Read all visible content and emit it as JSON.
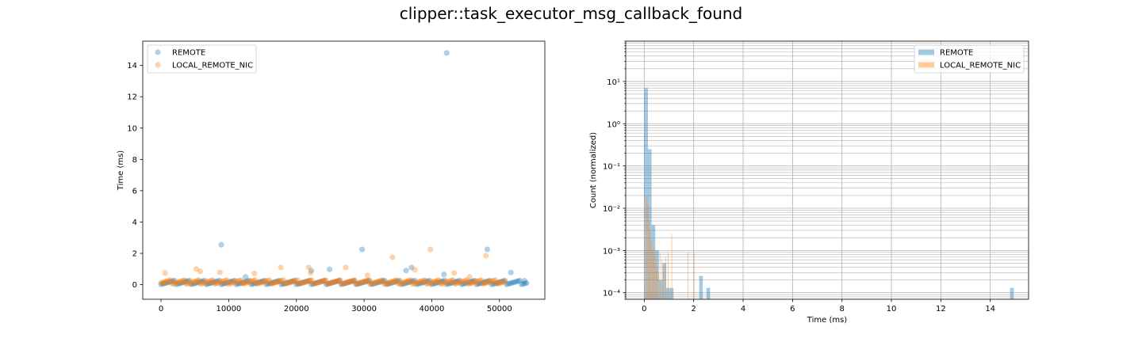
{
  "figure": {
    "title": "clipper::task_executor_msg_callback_found",
    "colors": {
      "REMOTE": "#1f77b4",
      "LOCAL_REMOTE_NIC": "#ff7f0e"
    }
  },
  "chart_data": [
    {
      "type": "scatter",
      "title": "",
      "xlabel": "",
      "ylabel": "Time (ms)",
      "xlim": [
        -2700,
        56700
      ],
      "ylim": [
        -0.93,
        15.55
      ],
      "xticks": [
        "0",
        "10000",
        "20000",
        "30000",
        "40000",
        "50000"
      ],
      "yticks": [
        "0",
        "2",
        "4",
        "6",
        "8",
        "10",
        "12",
        "14"
      ],
      "legend": {
        "placement": "upper-left",
        "entries": [
          "REMOTE",
          "LOCAL_REMOTE_NIC"
        ]
      },
      "series": [
        {
          "name": "REMOTE",
          "color": "#1f77b4",
          "x_range": [
            0,
            54000
          ],
          "baseline": 0.02,
          "outliers": [
            [
              8900,
              2.55
            ],
            [
              29700,
              2.25
            ],
            [
              42200,
              14.8
            ],
            [
              48200,
              2.25
            ],
            [
              51700,
              0.78
            ],
            [
              41800,
              0.65
            ],
            [
              37000,
              1.1
            ],
            [
              36200,
              0.9
            ],
            [
              22200,
              0.9
            ],
            [
              24900,
              0.98
            ],
            [
              53700,
              0.25
            ],
            [
              12500,
              0.5
            ]
          ]
        },
        {
          "name": "LOCAL_REMOTE_NIC",
          "color": "#ff7f0e",
          "x_range": [
            0,
            50800
          ],
          "baseline": 0.05,
          "outliers": [
            [
              600,
              0.75
            ],
            [
              5200,
              1.0
            ],
            [
              5800,
              0.85
            ],
            [
              8700,
              0.78
            ],
            [
              13800,
              0.72
            ],
            [
              17700,
              1.1
            ],
            [
              21800,
              1.1
            ],
            [
              22100,
              0.75
            ],
            [
              27300,
              1.1
            ],
            [
              34200,
              1.75
            ],
            [
              37500,
              0.95
            ],
            [
              39800,
              2.25
            ],
            [
              43300,
              0.75
            ],
            [
              48000,
              1.85
            ],
            [
              30500,
              0.6
            ],
            [
              45600,
              0.5
            ]
          ]
        }
      ]
    },
    {
      "type": "bar",
      "title": "",
      "xlabel": "Time (ms)",
      "ylabel": "Count (normalized)",
      "xlim": [
        -0.75,
        15.55
      ],
      "ylim": [
        7e-05,
        90
      ],
      "yscale": "log",
      "grid": true,
      "xticks": [
        "0",
        "2",
        "4",
        "6",
        "8",
        "10",
        "12",
        "14"
      ],
      "yticks": [
        "10⁻⁴",
        "10⁻³",
        "10⁻²",
        "10⁻¹",
        "10⁰",
        "10¹"
      ],
      "legend": {
        "placement": "upper-right",
        "entries": [
          "REMOTE",
          "LOCAL_REMOTE_NIC"
        ]
      },
      "series": [
        {
          "name": "REMOTE",
          "color": "#1f77b4",
          "bin_width": 0.148,
          "bins": [
            [
              0,
              7
            ],
            [
              0.148,
              0.25
            ],
            [
              0.296,
              0.004
            ],
            [
              0.444,
              0.001
            ],
            [
              0.592,
              0.0002
            ],
            [
              0.74,
              0.0005
            ],
            [
              0.888,
              0.00013
            ],
            [
              1.036,
              0.00013
            ],
            [
              2.22,
              0.00025
            ],
            [
              2.516,
              0.00013
            ],
            [
              14.8,
              0.00013
            ]
          ]
        },
        {
          "name": "LOCAL_REMOTE_NIC",
          "color": "#ff7f0e",
          "bin_width": 0.022,
          "bins": [
            [
              0.06,
              0.018
            ],
            [
              0.1,
              0.02
            ],
            [
              0.14,
              0.012
            ],
            [
              0.18,
              0.005
            ],
            [
              0.22,
              0.003
            ],
            [
              0.26,
              0.002
            ],
            [
              0.3,
              0.0015
            ],
            [
              0.34,
              0.001
            ],
            [
              0.38,
              0.0013
            ],
            [
              0.42,
              0.0007
            ],
            [
              0.46,
              0.0005
            ],
            [
              0.5,
              0.0004
            ],
            [
              0.56,
              0.0003
            ],
            [
              0.62,
              0.0009
            ],
            [
              0.7,
              0.0006
            ],
            [
              0.76,
              0.0003
            ],
            [
              0.85,
              0.0007
            ],
            [
              0.95,
              0.0009
            ],
            [
              1.1,
              0.0025
            ],
            [
              1.75,
              0.0009
            ],
            [
              2.0,
              0.0009
            ]
          ]
        }
      ]
    }
  ]
}
